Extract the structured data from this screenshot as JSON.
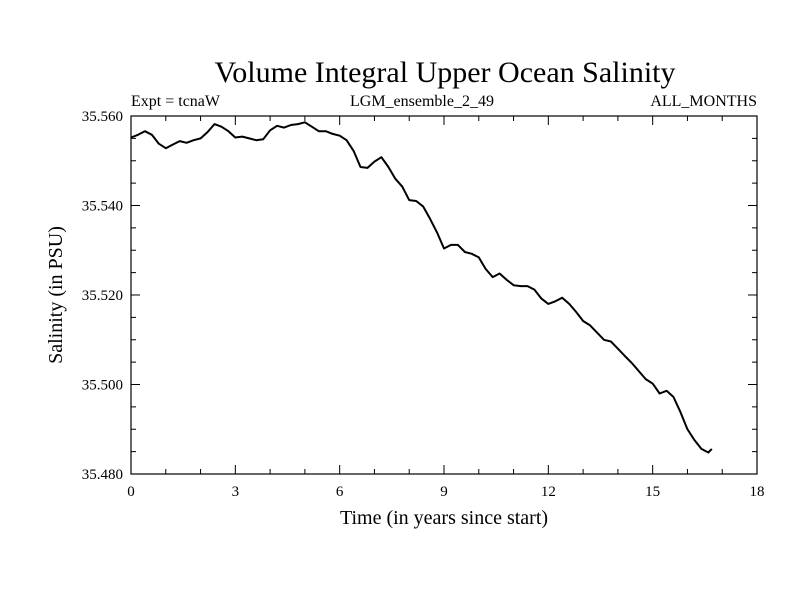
{
  "chart_data": {
    "type": "line",
    "title": "Volume Integral Upper Ocean Salinity",
    "subtitle_left": "Expt = tcnaW",
    "subtitle_center": "LGM_ensemble_2_49",
    "subtitle_right": "ALL_MONTHS",
    "xlabel": "Time (in years since start)",
    "ylabel": "Salinity (in PSU)",
    "xlim": [
      0,
      18
    ],
    "ylim": [
      35.48,
      35.56
    ],
    "x_ticks": [
      0,
      3,
      6,
      9,
      12,
      15,
      18
    ],
    "x_tick_labels": [
      "0",
      "3",
      "6",
      "9",
      "12",
      "15",
      "18"
    ],
    "y_ticks": [
      35.48,
      35.5,
      35.52,
      35.54,
      35.56
    ],
    "y_tick_labels": [
      "35.480",
      "35.500",
      "35.520",
      "35.540",
      "35.560"
    ],
    "grid": false,
    "series": [
      {
        "name": "salinity",
        "x": [
          0,
          0.2,
          0.4,
          0.6,
          0.8,
          1.0,
          1.2,
          1.4,
          1.6,
          1.8,
          2.0,
          2.2,
          2.4,
          2.6,
          2.8,
          3.0,
          3.2,
          3.4,
          3.6,
          3.8,
          4.0,
          4.2,
          4.4,
          4.6,
          4.8,
          5.0,
          5.2,
          5.4,
          5.6,
          5.8,
          6.0,
          6.2,
          6.4,
          6.6,
          6.8,
          7.0,
          7.2,
          7.4,
          7.6,
          7.8,
          8.0,
          8.2,
          8.4,
          8.6,
          8.8,
          9.0,
          9.2,
          9.4,
          9.6,
          9.8,
          10.0,
          10.2,
          10.4,
          10.6,
          10.8,
          11.0,
          11.2,
          11.4,
          11.6,
          11.8,
          12.0,
          12.2,
          12.4,
          12.6,
          12.8,
          13.0,
          13.2,
          13.4,
          13.6,
          13.8,
          14.0,
          14.2,
          14.4,
          14.6,
          14.8,
          15.0,
          15.2,
          15.4,
          15.6,
          15.8,
          16.0,
          16.2,
          16.4,
          16.6,
          16.7
        ],
        "values": [
          35.5552,
          35.5558,
          35.5566,
          35.5558,
          35.5538,
          35.5528,
          35.5536,
          35.5544,
          35.554,
          35.5546,
          35.555,
          35.5564,
          35.5582,
          35.5576,
          35.5566,
          35.5552,
          35.5554,
          35.555,
          35.5546,
          35.5548,
          35.5568,
          35.5578,
          35.5574,
          35.558,
          35.5582,
          35.5586,
          35.5576,
          35.5566,
          35.5566,
          35.556,
          35.5556,
          35.5546,
          35.5522,
          35.5486,
          35.5484,
          35.5498,
          35.5508,
          35.5486,
          35.546,
          35.5442,
          35.5412,
          35.541,
          35.5398,
          35.537,
          35.534,
          35.5304,
          35.5312,
          35.5312,
          35.5296,
          35.5292,
          35.5284,
          35.5258,
          35.524,
          35.5248,
          35.5234,
          35.5222,
          35.522,
          35.522,
          35.5212,
          35.5192,
          35.518,
          35.5186,
          35.5194,
          35.518,
          35.5162,
          35.5142,
          35.5132,
          35.5116,
          35.51,
          35.5096,
          35.508,
          35.5064,
          35.5048,
          35.503,
          35.5012,
          35.5002,
          35.498,
          35.4986,
          35.4972,
          35.4938,
          35.49,
          35.4876,
          35.4856,
          35.4848,
          35.4856
        ]
      }
    ]
  }
}
